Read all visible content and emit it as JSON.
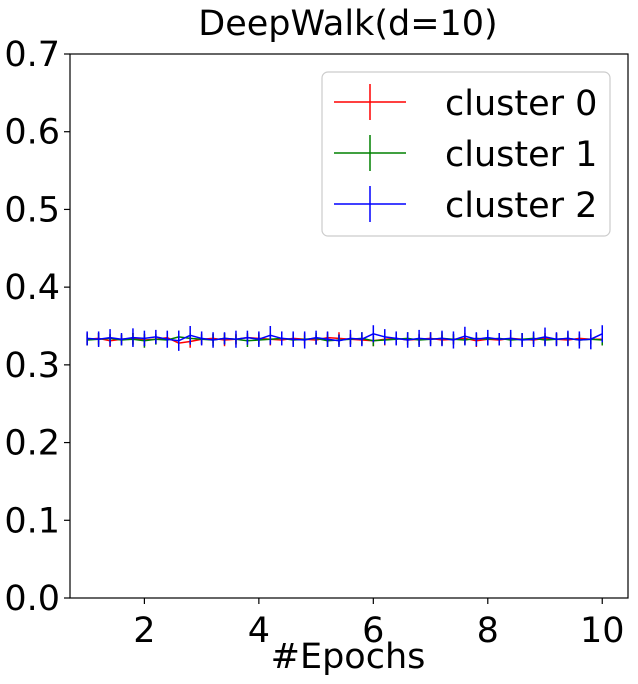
{
  "chart_data": {
    "type": "line",
    "title": "DeepWalk(d=10)",
    "xlabel": "#Epochs",
    "ylabel": "",
    "xlim": [
      0.7,
      10.45
    ],
    "ylim": [
      0.0,
      0.7
    ],
    "x_ticks": [
      2,
      4,
      6,
      8,
      10
    ],
    "x_tick_labels": [
      "2",
      "4",
      "6",
      "8",
      "10"
    ],
    "y_ticks": [
      0.0,
      0.1,
      0.2,
      0.3,
      0.4,
      0.5,
      0.6,
      0.7
    ],
    "y_tick_labels": [
      "0.0",
      "0.1",
      "0.2",
      "0.3",
      "0.4",
      "0.5",
      "0.6",
      "0.7"
    ],
    "grid": false,
    "legend_position": "top-right",
    "error_bars": true,
    "series": [
      {
        "name": "cluster 0",
        "color": "#ff0000",
        "x": [
          1.0,
          1.2,
          1.4,
          1.6,
          1.8,
          2.0,
          2.2,
          2.4,
          2.6,
          2.8,
          3.0,
          3.2,
          3.4,
          3.6,
          3.8,
          4.0,
          4.2,
          4.4,
          4.6,
          4.8,
          5.0,
          5.2,
          5.4,
          5.6,
          5.8,
          6.0,
          6.2,
          6.4,
          6.6,
          6.8,
          7.0,
          7.2,
          7.4,
          7.6,
          7.8,
          8.0,
          8.2,
          8.4,
          8.6,
          8.8,
          9.0,
          9.2,
          9.4,
          9.6,
          9.8,
          10.0
        ],
        "values": [
          0.333,
          0.334,
          0.331,
          0.333,
          0.334,
          0.332,
          0.333,
          0.335,
          0.328,
          0.33,
          0.333,
          0.334,
          0.332,
          0.333,
          0.335,
          0.334,
          0.333,
          0.332,
          0.334,
          0.333,
          0.332,
          0.335,
          0.334,
          0.333,
          0.332,
          0.331,
          0.333,
          0.334,
          0.332,
          0.333,
          0.334,
          0.332,
          0.333,
          0.334,
          0.331,
          0.333,
          0.332,
          0.334,
          0.333,
          0.332,
          0.334,
          0.333,
          0.332,
          0.334,
          0.333,
          0.333
        ],
        "errors": [
          0.008,
          0.007,
          0.008,
          0.006,
          0.007,
          0.008,
          0.006,
          0.007,
          0.009,
          0.008,
          0.007,
          0.006,
          0.008,
          0.007,
          0.006,
          0.007,
          0.008,
          0.006,
          0.007,
          0.008,
          0.006,
          0.007,
          0.008,
          0.007,
          0.006,
          0.007,
          0.008,
          0.007,
          0.006,
          0.007,
          0.008,
          0.007,
          0.006,
          0.007,
          0.008,
          0.006,
          0.007,
          0.008,
          0.007,
          0.006,
          0.007,
          0.008,
          0.007,
          0.006,
          0.007,
          0.008
        ]
      },
      {
        "name": "cluster 1",
        "color": "#008000",
        "x": [
          1.0,
          1.2,
          1.4,
          1.6,
          1.8,
          2.0,
          2.2,
          2.4,
          2.6,
          2.8,
          3.0,
          3.2,
          3.4,
          3.6,
          3.8,
          4.0,
          4.2,
          4.4,
          4.6,
          4.8,
          5.0,
          5.2,
          5.4,
          5.6,
          5.8,
          6.0,
          6.2,
          6.4,
          6.6,
          6.8,
          7.0,
          7.2,
          7.4,
          7.6,
          7.8,
          8.0,
          8.2,
          8.4,
          8.6,
          8.8,
          9.0,
          9.2,
          9.4,
          9.6,
          9.8,
          10.0
        ],
        "values": [
          0.332,
          0.333,
          0.334,
          0.332,
          0.333,
          0.331,
          0.333,
          0.332,
          0.336,
          0.334,
          0.333,
          0.332,
          0.334,
          0.333,
          0.331,
          0.332,
          0.333,
          0.334,
          0.332,
          0.333,
          0.334,
          0.331,
          0.332,
          0.333,
          0.334,
          0.331,
          0.332,
          0.333,
          0.334,
          0.332,
          0.333,
          0.334,
          0.333,
          0.332,
          0.334,
          0.333,
          0.334,
          0.332,
          0.333,
          0.334,
          0.332,
          0.333,
          0.334,
          0.332,
          0.333,
          0.332
        ],
        "errors": [
          0.007,
          0.008,
          0.006,
          0.007,
          0.008,
          0.009,
          0.007,
          0.006,
          0.008,
          0.007,
          0.006,
          0.008,
          0.007,
          0.006,
          0.008,
          0.007,
          0.006,
          0.008,
          0.007,
          0.006,
          0.007,
          0.008,
          0.007,
          0.006,
          0.008,
          0.007,
          0.006,
          0.007,
          0.008,
          0.007,
          0.006,
          0.008,
          0.007,
          0.006,
          0.007,
          0.008,
          0.007,
          0.006,
          0.008,
          0.007,
          0.006,
          0.007,
          0.008,
          0.007,
          0.006,
          0.007
        ]
      },
      {
        "name": "cluster 2",
        "color": "#0000ff",
        "x": [
          1.0,
          1.2,
          1.4,
          1.6,
          1.8,
          2.0,
          2.2,
          2.4,
          2.6,
          2.8,
          3.0,
          3.2,
          3.4,
          3.6,
          3.8,
          4.0,
          4.2,
          4.4,
          4.6,
          4.8,
          5.0,
          5.2,
          5.4,
          5.6,
          5.8,
          6.0,
          6.2,
          6.4,
          6.6,
          6.8,
          7.0,
          7.2,
          7.4,
          7.6,
          7.8,
          8.0,
          8.2,
          8.4,
          8.6,
          8.8,
          9.0,
          9.2,
          9.4,
          9.6,
          9.8,
          10.0
        ],
        "values": [
          0.334,
          0.333,
          0.335,
          0.333,
          0.335,
          0.334,
          0.336,
          0.333,
          0.331,
          0.338,
          0.334,
          0.332,
          0.334,
          0.333,
          0.335,
          0.333,
          0.338,
          0.334,
          0.333,
          0.332,
          0.335,
          0.333,
          0.331,
          0.334,
          0.333,
          0.34,
          0.336,
          0.334,
          0.332,
          0.334,
          0.333,
          0.334,
          0.332,
          0.337,
          0.333,
          0.335,
          0.333,
          0.334,
          0.332,
          0.333,
          0.336,
          0.333,
          0.334,
          0.332,
          0.333,
          0.34
        ],
        "errors": [
          0.009,
          0.01,
          0.011,
          0.008,
          0.012,
          0.01,
          0.009,
          0.011,
          0.013,
          0.012,
          0.009,
          0.01,
          0.008,
          0.011,
          0.009,
          0.01,
          0.012,
          0.009,
          0.01,
          0.011,
          0.009,
          0.01,
          0.008,
          0.011,
          0.009,
          0.011,
          0.01,
          0.009,
          0.01,
          0.011,
          0.009,
          0.01,
          0.011,
          0.012,
          0.009,
          0.01,
          0.008,
          0.011,
          0.009,
          0.01,
          0.012,
          0.009,
          0.01,
          0.011,
          0.013,
          0.011
        ]
      }
    ]
  }
}
